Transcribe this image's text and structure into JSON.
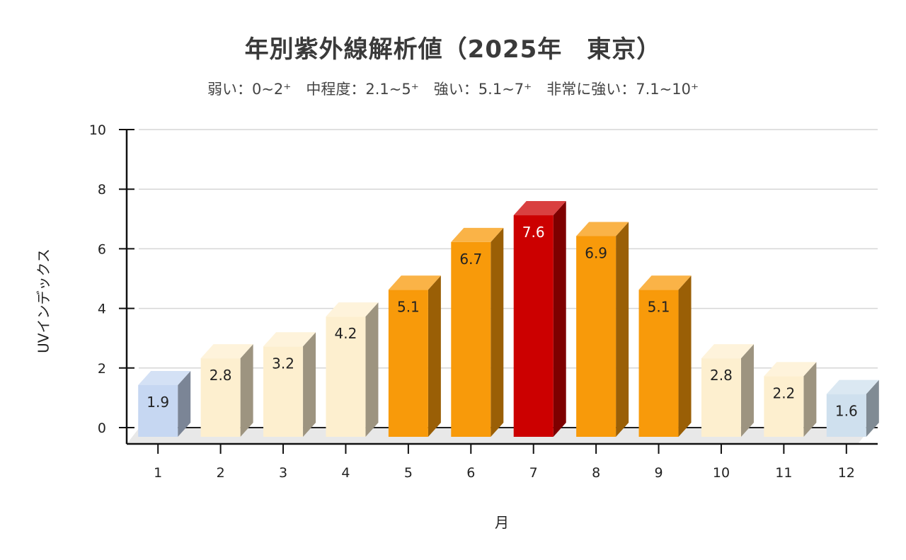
{
  "chart_data": {
    "type": "bar",
    "title": "年別紫外線解析値（2025年　東京）",
    "subtitle": "弱い：0~2⁺　中程度：2.1~5⁺　強い：5.1~7⁺　非常に強い：7.1~10⁺",
    "xlabel": "月",
    "ylabel": "UVインデックス",
    "categories": [
      "1",
      "2",
      "3",
      "4",
      "5",
      "6",
      "7",
      "8",
      "9",
      "10",
      "11",
      "12"
    ],
    "values": [
      1.9,
      2.8,
      3.2,
      4.2,
      5.1,
      6.7,
      7.6,
      6.9,
      5.1,
      2.8,
      2.2,
      1.6
    ],
    "value_labels": [
      "1.9",
      "2.8",
      "3.2",
      "4.2",
      "5.1",
      "6.7",
      "7.6",
      "6.9",
      "5.1",
      "2.8",
      "2.2",
      "1.6"
    ],
    "ylim": [
      0,
      10
    ],
    "yticks": [
      0,
      2,
      4,
      6,
      8,
      10
    ],
    "grid": true,
    "legend": "none",
    "bar_colors": [
      "#c6d7f2",
      "#fdefcf",
      "#fdefcf",
      "#fdefcf",
      "#f89a0a",
      "#f89a0a",
      "#cc0000",
      "#f89a0a",
      "#f89a0a",
      "#fdefcf",
      "#fdefcf",
      "#cfe0ee"
    ],
    "label_colors": [
      "#222222",
      "#222222",
      "#222222",
      "#222222",
      "#222222",
      "#222222",
      "#ffffff",
      "#222222",
      "#222222",
      "#222222",
      "#222222",
      "#222222"
    ]
  }
}
